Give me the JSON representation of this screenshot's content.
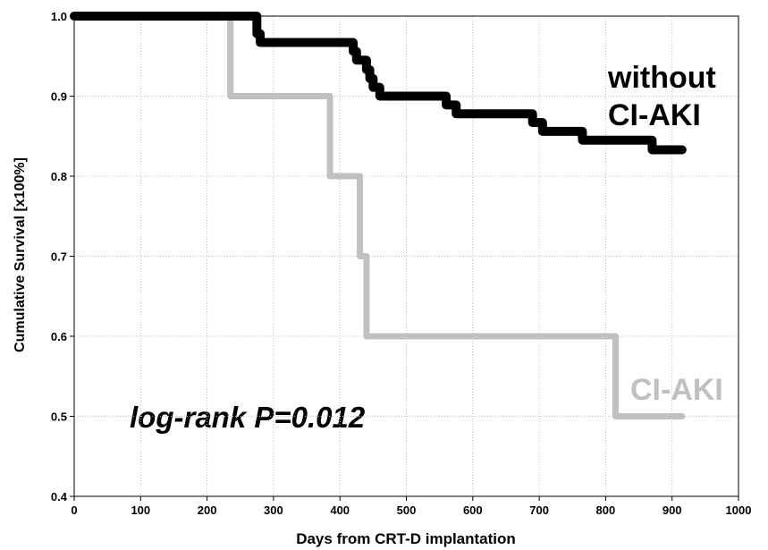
{
  "chart_data": {
    "type": "line",
    "step": "post",
    "x_label": "Days from CRT-D implantation",
    "y_label": "Cumulative Survival [x100%]",
    "annotation": "log-rank P=0.012",
    "xlim": [
      0,
      1000
    ],
    "xticks": [
      0,
      100,
      200,
      300,
      400,
      500,
      600,
      700,
      800,
      900,
      1000
    ],
    "ylim": [
      0.4,
      1.0
    ],
    "yticks": [
      0.4,
      0.5,
      0.6,
      0.7,
      0.8,
      0.9,
      {
        "value": 1.0,
        "label": "1.0"
      }
    ],
    "grid": true,
    "series": [
      {
        "name": [
          "without",
          "CI-AKI"
        ],
        "color": "#000000",
        "x": [
          0,
          275,
          280,
          420,
          425,
          440,
          445,
          450,
          460,
          560,
          575,
          690,
          705,
          765,
          870,
          915
        ],
        "values": [
          1.0,
          0.978,
          0.967,
          0.956,
          0.945,
          0.933,
          0.922,
          0.911,
          0.9,
          0.889,
          0.878,
          0.867,
          0.856,
          0.845,
          0.833,
          0.833
        ]
      },
      {
        "name": [
          "CI-AKI"
        ],
        "color": "#c0c0c0",
        "x": [
          0,
          235,
          385,
          430,
          440,
          815,
          915
        ],
        "values": [
          1.0,
          0.9,
          0.8,
          0.7,
          0.6,
          0.5,
          0.5
        ]
      }
    ]
  }
}
